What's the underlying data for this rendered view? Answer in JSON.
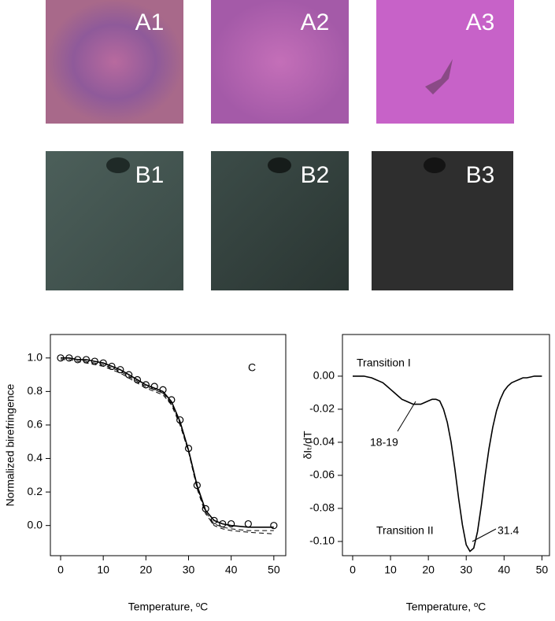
{
  "panels": [
    {
      "label": "A1"
    },
    {
      "label": "A2"
    },
    {
      "label": "A3"
    },
    {
      "label": "B1"
    },
    {
      "label": "B2"
    },
    {
      "label": "B3"
    }
  ],
  "chart_data": [
    {
      "type": "line",
      "x_label": "Temperature, ºC",
      "y_label": "Normalized birefringence",
      "annotations": [
        "C"
      ],
      "x": [
        0,
        2,
        4,
        6,
        8,
        10,
        12,
        14,
        16,
        18,
        20,
        22,
        24,
        26,
        28,
        30,
        32,
        34,
        36,
        38,
        40,
        44,
        50
      ],
      "series": [
        {
          "color": "#000000",
          "marker": "circle",
          "values": [
            1.0,
            1.0,
            0.99,
            0.99,
            0.98,
            0.97,
            0.95,
            0.93,
            0.9,
            0.87,
            0.84,
            0.83,
            0.81,
            0.75,
            0.63,
            0.46,
            0.24,
            0.1,
            0.03,
            0.01,
            0.01,
            0.01,
            0.0
          ]
        },
        {
          "color": "#000000",
          "style": "solid",
          "values": [
            1.0,
            1.0,
            0.99,
            0.99,
            0.98,
            0.97,
            0.95,
            0.93,
            0.9,
            0.87,
            0.84,
            0.82,
            0.8,
            0.74,
            0.62,
            0.45,
            0.24,
            0.09,
            0.03,
            0.01,
            0.0,
            -0.01,
            -0.01
          ]
        },
        {
          "color": "#000000",
          "style": "dashed",
          "values": [
            0.99,
            0.99,
            0.98,
            0.97,
            0.96,
            0.95,
            0.93,
            0.91,
            0.88,
            0.85,
            0.82,
            0.8,
            0.78,
            0.72,
            0.6,
            0.44,
            0.23,
            0.08,
            0.01,
            -0.01,
            -0.02,
            -0.03,
            -0.03
          ]
        },
        {
          "color": "#000000",
          "style": "dashed",
          "values": [
            1.0,
            1.0,
            0.99,
            0.98,
            0.97,
            0.96,
            0.94,
            0.92,
            0.89,
            0.86,
            0.83,
            0.81,
            0.79,
            0.73,
            0.61,
            0.44,
            0.22,
            0.07,
            0.0,
            -0.02,
            -0.03,
            -0.04,
            -0.05
          ]
        }
      ],
      "xlim": [
        -2.4,
        52.8
      ],
      "xticks": [
        0,
        10,
        20,
        30,
        40,
        50
      ],
      "ylim": [
        -0.18,
        1.14
      ],
      "yticks": [
        {
          "value": 0,
          "label": "0.0"
        },
        0.2,
        0.4,
        0.6,
        0.8,
        {
          "value": 1,
          "label": "1.0"
        }
      ]
    },
    {
      "type": "line",
      "x_label": "Temperature, ºC",
      "y_label": "δIₜ/dT",
      "annotations": [
        "Transition I",
        "18-19",
        "Transition II",
        "31.4"
      ],
      "x": [
        0,
        1,
        2,
        3,
        4,
        5,
        6,
        7,
        8,
        9,
        10,
        11,
        12,
        13,
        14,
        15,
        16,
        17,
        18,
        19,
        20,
        21,
        22,
        23,
        24,
        25,
        26,
        27,
        28,
        29,
        30,
        31,
        32,
        33,
        34,
        35,
        36,
        37,
        38,
        39,
        40,
        41,
        42,
        43,
        44,
        45,
        46,
        47,
        48,
        49,
        50
      ],
      "series": [
        {
          "color": "#000000",
          "style": "solid",
          "values": [
            0,
            0,
            0,
            0,
            -0.0005,
            -0.001,
            -0.002,
            -0.003,
            -0.004,
            -0.006,
            -0.008,
            -0.01,
            -0.012,
            -0.014,
            -0.015,
            -0.016,
            -0.017,
            -0.017,
            -0.017,
            -0.016,
            -0.015,
            -0.014,
            -0.014,
            -0.015,
            -0.02,
            -0.028,
            -0.04,
            -0.056,
            -0.074,
            -0.09,
            -0.102,
            -0.106,
            -0.104,
            -0.094,
            -0.078,
            -0.06,
            -0.044,
            -0.031,
            -0.021,
            -0.014,
            -0.009,
            -0.006,
            -0.004,
            -0.003,
            -0.002,
            -0.001,
            -0.001,
            -0.0005,
            0,
            0,
            0
          ]
        }
      ],
      "xlim": [
        -2.7,
        52
      ],
      "xticks": [
        0,
        10,
        20,
        30,
        40,
        50
      ],
      "ylim": [
        -0.1086,
        0.0252
      ],
      "yticks": [
        {
          "value": 0,
          "label": "0.00"
        },
        -0.02,
        -0.04,
        -0.06,
        -0.08,
        {
          "value": -0.1,
          "label": "-0.10"
        }
      ]
    }
  ]
}
